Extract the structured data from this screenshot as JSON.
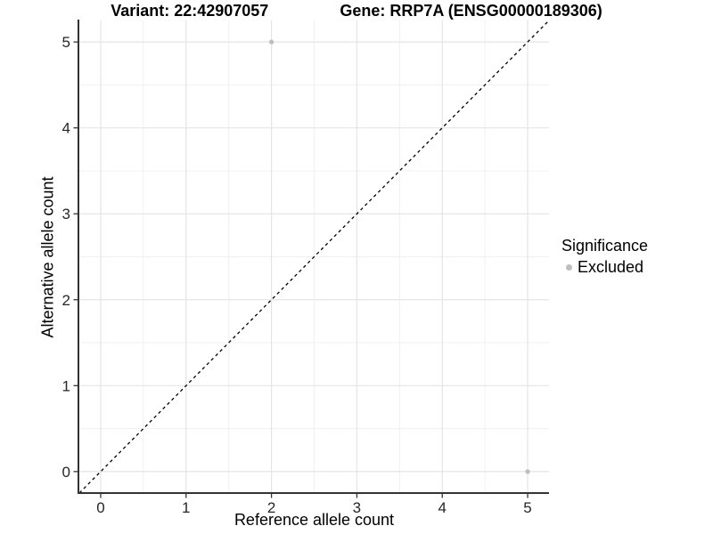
{
  "header": {
    "variant_title": "Variant: 22:42907057",
    "gene_title": "Gene: RRP7A (ENSG00000189306)"
  },
  "chart_data": {
    "type": "scatter",
    "title": "Variant: 22:42907057    Gene: RRP7A (ENSG00000189306)",
    "xlabel": "Reference allele count",
    "ylabel": "Alternative allele count",
    "xlim": [
      -0.25,
      5.25
    ],
    "ylim": [
      -0.25,
      5.25
    ],
    "x_ticks": [
      0,
      1,
      2,
      3,
      4,
      5
    ],
    "y_ticks": [
      0,
      1,
      2,
      3,
      4,
      5
    ],
    "x_minor_ticks": [
      0.5,
      1.5,
      2.5,
      3.5,
      4.5
    ],
    "y_minor_ticks": [
      0.5,
      1.5,
      2.5,
      3.5,
      4.5
    ],
    "grid": "major and minor gridlines on white background",
    "series": [
      {
        "name": "Excluded",
        "color": "#bebebe",
        "points": [
          {
            "x": 2,
            "y": 5
          },
          {
            "x": 5,
            "y": 0
          }
        ]
      }
    ],
    "reference_line": {
      "type": "identity y=x",
      "style": "dashed",
      "color": "#000000"
    },
    "legend": {
      "title": "Significance",
      "position": "right",
      "items": [
        {
          "label": "Excluded",
          "color": "#bebebe"
        }
      ]
    }
  },
  "colors": {
    "background": "#ffffff",
    "grid_major": "#e4e4e4",
    "grid_minor": "#f0f0f0",
    "axis_line": "#333333",
    "tick_mark": "#333333",
    "point": "#bebebe"
  }
}
